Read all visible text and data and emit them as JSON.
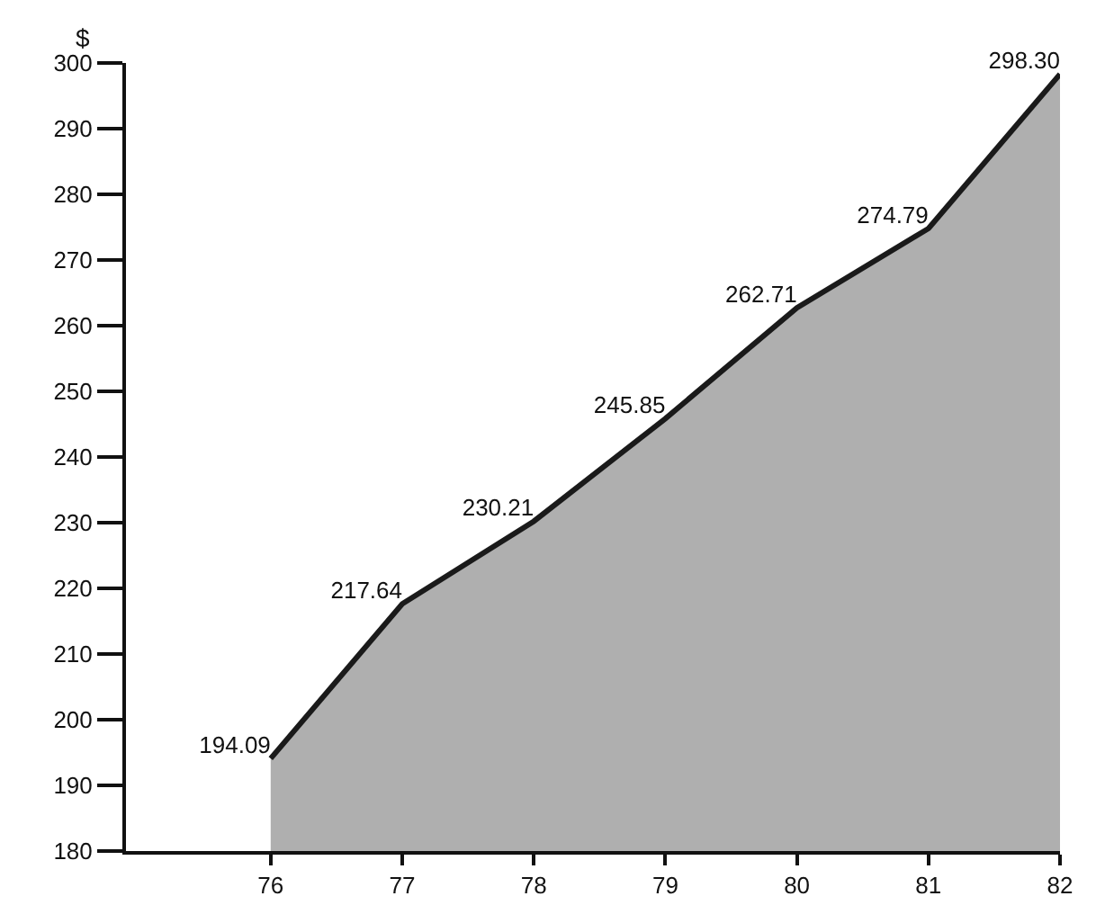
{
  "chart_data": {
    "type": "area",
    "ylabel": "$",
    "x": [
      76,
      77,
      78,
      79,
      80,
      81,
      82
    ],
    "series": [
      {
        "color": "#1a1a1a",
        "values": [
          194.09,
          217.64,
          230.21,
          245.85,
          262.71,
          274.79,
          298.3
        ],
        "value_labels": [
          "194.09",
          "217.64",
          "230.21",
          "245.85",
          "262.71",
          "274.79",
          "298.30"
        ]
      }
    ],
    "xlim": [
      74.9,
      82
    ],
    "xticks": [
      76,
      77,
      78,
      79,
      80,
      81,
      82
    ],
    "ylim": [
      180,
      300
    ],
    "yticks": [
      180,
      190,
      200,
      210,
      220,
      230,
      240,
      250,
      260,
      270,
      280,
      290,
      300
    ],
    "marker": "none",
    "line_style": "solid"
  }
}
